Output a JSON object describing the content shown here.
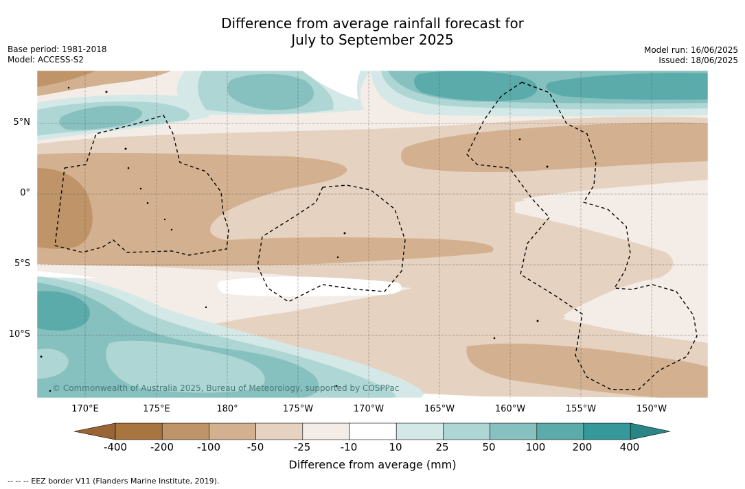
{
  "title_line1": "Difference from average rainfall forecast for",
  "title_line2": "July to September 2025",
  "left_info": {
    "base_period": "Base period: 1981-2018",
    "model": "Model: ACCESS-S2"
  },
  "right_info": {
    "model_run": "Model run: 16/06/2025",
    "issued": "Issued: 18/06/2025"
  },
  "lon_labels": [
    "170°E",
    "175°E",
    "180°",
    "175°W",
    "170°W",
    "165°W",
    "160°W",
    "155°W",
    "150°W"
  ],
  "lat_labels": [
    "5°N",
    "0°",
    "5°S",
    "10°S"
  ],
  "copyright": "© Commonwealth of Australia 2025, Bureau of Meteorology, supported by COSPPac",
  "colorbar": {
    "labels": [
      "-400",
      "-200",
      "-100",
      "-50",
      "-25",
      "-10",
      "10",
      "25",
      "50",
      "100",
      "200",
      "400"
    ],
    "colors": [
      "#a87540",
      "#bf9468",
      "#d3b190",
      "#e6d2c0",
      "#f4ece6",
      "#ffffff",
      "#d4e9e7",
      "#aed6d4",
      "#86c0bf",
      "#5aabaa",
      "#35999a"
    ],
    "extend_low": "#9a6535",
    "extend_high": "#2a8585",
    "title": "Difference from average (mm)"
  },
  "footnote": "--  --  -- EEZ border V11 (Flanders Marine Institute, 2019)."
}
